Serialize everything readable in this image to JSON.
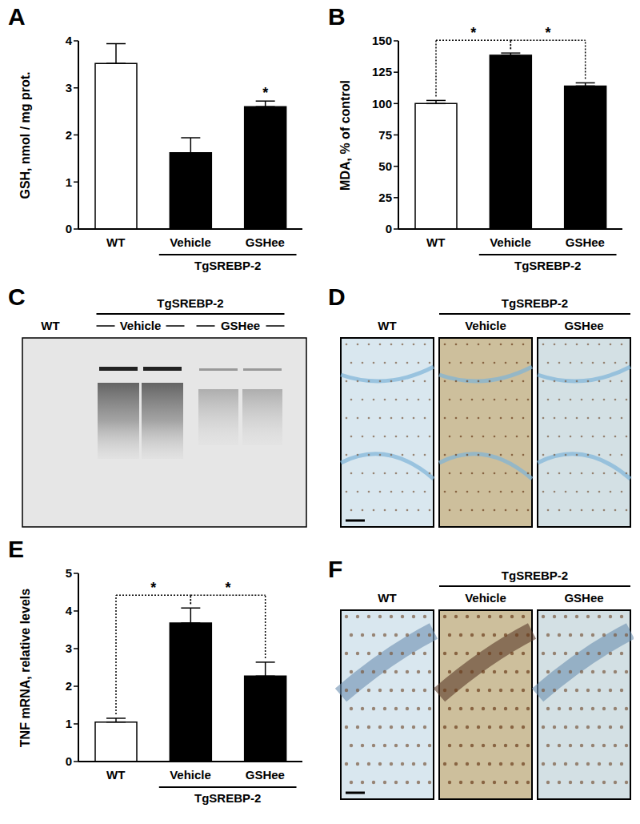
{
  "chart_data": [
    {
      "type": "bar",
      "title": "A",
      "ylabel": "GSH, nmol / mg prot.",
      "categories": [
        "WT",
        "Vehicle",
        "GSHee"
      ],
      "values": [
        3.52,
        1.62,
        2.6
      ],
      "errors": [
        0.42,
        0.32,
        0.12
      ],
      "colors": [
        "#ffffff",
        "#000000",
        "#000000"
      ],
      "ylim": [
        0,
        4
      ],
      "yticks": [
        0,
        1,
        2,
        3,
        4
      ],
      "group": {
        "label": "TgSREBP-2",
        "from": 1,
        "to": 2
      },
      "significance": [
        null,
        null,
        "*"
      ]
    },
    {
      "type": "bar",
      "title": "B",
      "ylabel": "MDA, % of control",
      "categories": [
        "WT",
        "Vehicle",
        "GSHee"
      ],
      "values": [
        100,
        138.5,
        114
      ],
      "errors": [
        2.5,
        1.8,
        2.5
      ],
      "colors": [
        "#ffffff",
        "#000000",
        "#000000"
      ],
      "ylim": [
        0,
        150
      ],
      "yticks": [
        0,
        25,
        50,
        75,
        100,
        125,
        150
      ],
      "group": {
        "label": "TgSREBP-2",
        "from": 1,
        "to": 2
      },
      "comparisons": [
        {
          "from": 0,
          "to": 1,
          "label": "*"
        },
        {
          "from": 1,
          "to": 2,
          "label": "*"
        }
      ]
    },
    {
      "type": "bar",
      "title": "E",
      "ylabel": "TNF mRNA, relative levels",
      "categories": [
        "WT",
        "Vehicle",
        "GSHee"
      ],
      "values": [
        1.05,
        3.68,
        2.27
      ],
      "errors": [
        0.1,
        0.4,
        0.37
      ],
      "colors": [
        "#ffffff",
        "#000000",
        "#000000"
      ],
      "ylim": [
        0,
        5
      ],
      "yticks": [
        0,
        1,
        2,
        3,
        4,
        5
      ],
      "group": {
        "label": "TgSREBP-2",
        "from": 1,
        "to": 2
      },
      "comparisons": [
        {
          "from": 0,
          "to": 1,
          "label": "*"
        },
        {
          "from": 1,
          "to": 2,
          "label": "*"
        }
      ]
    }
  ],
  "images": [
    {
      "type": "blot",
      "title": "C",
      "labels": [
        "WT",
        "Vehicle",
        "GSHee"
      ],
      "group": {
        "label": "TgSREBP-2",
        "from": 1,
        "to": 2
      }
    },
    {
      "type": "micrograph",
      "title": "D",
      "labels": [
        "WT",
        "Vehicle",
        "GSHee"
      ],
      "group": {
        "label": "TgSREBP-2",
        "from": 1,
        "to": 2
      }
    },
    {
      "type": "micrograph_cells",
      "title": "F",
      "labels": [
        "WT",
        "Vehicle",
        "GSHee"
      ],
      "group": {
        "label": "TgSREBP-2",
        "from": 1,
        "to": 2
      }
    }
  ]
}
